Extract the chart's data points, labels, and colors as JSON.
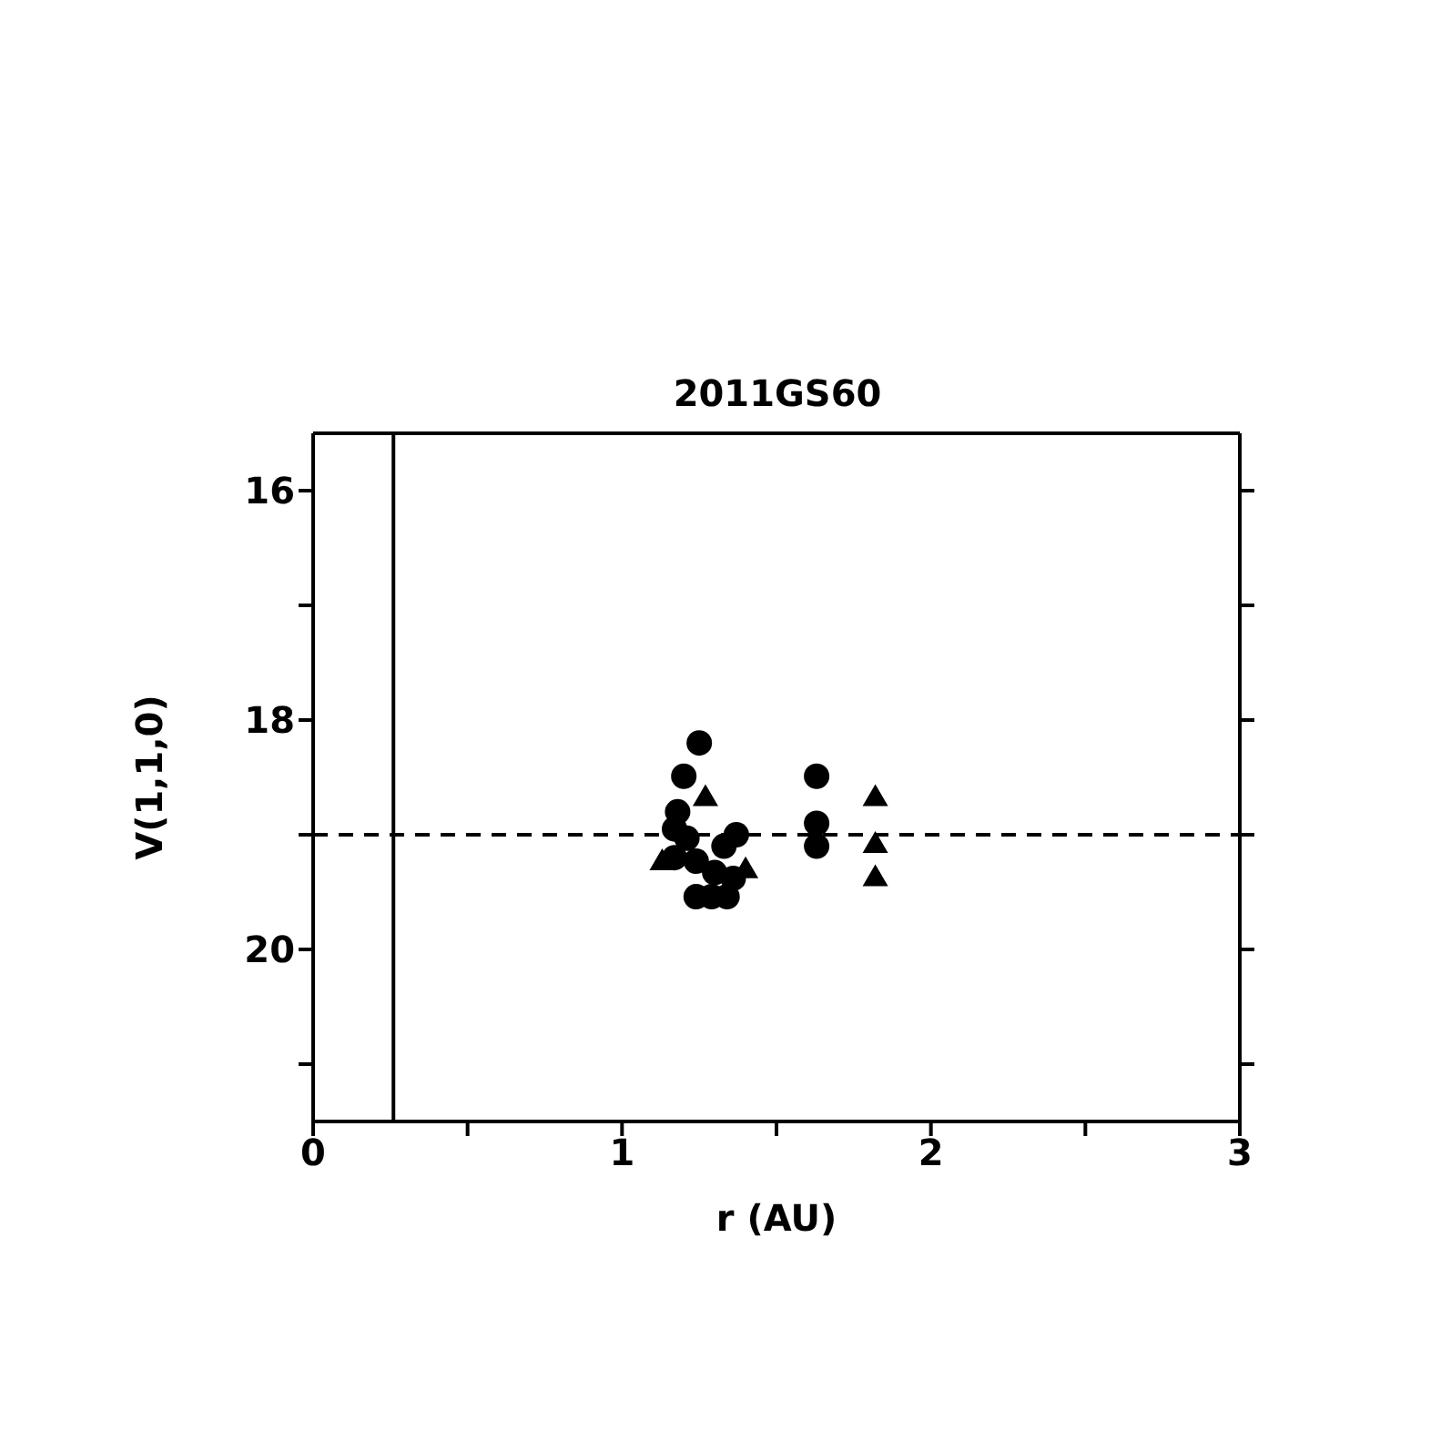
{
  "chart_data": {
    "type": "scatter",
    "title": "2011GS60",
    "xlabel": "r (AU)",
    "ylabel": "V(1,1,0)",
    "xlim": [
      0,
      3
    ],
    "xticks": [
      0,
      {
        "value": 0.5,
        "label": null
      },
      1,
      {
        "value": 1.5,
        "label": null
      },
      2,
      {
        "value": 2.5,
        "label": null
      },
      3
    ],
    "ylim": [
      21.5,
      15.5
    ],
    "yticks": [
      16,
      {
        "value": 17,
        "label": null
      },
      18,
      {
        "value": 19,
        "label": null
      },
      20,
      {
        "value": 21,
        "label": null
      }
    ],
    "ref_lines": [
      {
        "axis": "x",
        "value": 0.26,
        "color": "#000000",
        "line_style": "solid"
      },
      {
        "axis": "y",
        "value": 19.0,
        "color": "#000000",
        "line_style": "dashed"
      }
    ],
    "series": [
      {
        "color": "#000000",
        "marker": "circle",
        "x": [
          1.25,
          1.2,
          1.63,
          1.63,
          1.63,
          1.18,
          1.17,
          1.21,
          1.17,
          1.24,
          1.24,
          1.29,
          1.34,
          1.37,
          1.36,
          1.3,
          1.33
        ],
        "values": [
          18.2,
          18.49,
          18.49,
          18.9,
          19.1,
          18.8,
          18.95,
          19.03,
          19.2,
          19.23,
          19.54,
          19.54,
          19.54,
          19.0,
          19.38,
          19.33,
          19.1
        ]
      },
      {
        "color": "#000000",
        "marker": "triangle",
        "x": [
          1.82,
          1.82,
          1.82,
          1.27,
          1.4,
          1.13
        ],
        "values": [
          18.67,
          19.08,
          19.37,
          18.67,
          19.3,
          19.23
        ]
      }
    ]
  }
}
